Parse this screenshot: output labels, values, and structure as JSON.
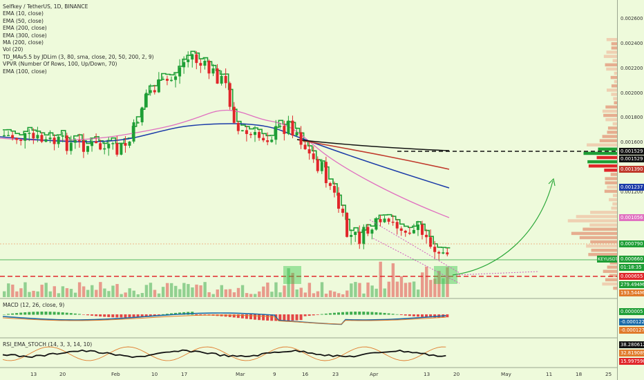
{
  "chart": {
    "indicators": [
      "Selfkey / TetherUS, 1D, BINANCE",
      "EMA (10, close)",
      "EMA (50, close)",
      "EMA (200, close)",
      "EMA (300, close)",
      "MA (200, close)",
      "Vol (20)",
      "TD_MAv5.5 by JDLim (3, 80, sma, close, 20, 50, 200, 2, 9)",
      "VPVR (Number Of Rows, 100, Up/Down, 70)",
      "EMA (100, close)"
    ],
    "macd_label": "MACD (12, 26, close, 9)",
    "rsi_label": "RSI_EMA_STOCH (14, 3, 3, 14, 10)",
    "symbol_tag": "KEYUSDT",
    "colors": {
      "background": "#eefadb",
      "up": "#1e9e35",
      "down": "#e0262a",
      "ema_black": "#111111",
      "ema_blue": "#1a3aa8",
      "ema_red": "#c0392b",
      "ma_pink": "#e070c0",
      "projection": "#2ca83a"
    }
  },
  "price_axis": {
    "ticks": [
      "0.002600",
      "0.002400",
      "0.002200",
      "0.002000",
      "0.001800",
      "0.001600",
      "0.001200"
    ],
    "tags": [
      {
        "text": "0.001529",
        "bg": "#111111"
      },
      {
        "text": "0.001529",
        "bg": "#111111"
      },
      {
        "text": "0.001390",
        "bg": "#c0392b"
      },
      {
        "text": "0.001237",
        "bg": "#1a3aa8"
      },
      {
        "text": "0.001056",
        "bg": "#e070c0"
      },
      {
        "text": "0.000790",
        "bg": "#1e9e35"
      },
      {
        "text": "0.000660",
        "bg": "#1e9e35"
      },
      {
        "text": "01:18:35",
        "bg": "#1e9e35"
      },
      {
        "text": "0.000655",
        "bg": "#e0262a"
      },
      {
        "text": "279.494M",
        "bg": "#1e9e35"
      },
      {
        "text": "193.544M",
        "bg": "#e07a2a"
      }
    ]
  },
  "macd_axis": [
    {
      "text": "0.000005",
      "bg": "#1e9e35"
    },
    {
      "text": "-0.000122",
      "bg": "#1a6aa8"
    },
    {
      "text": "-0.000127",
      "bg": "#e07a2a"
    }
  ],
  "rsi_axis": [
    {
      "text": "38.280612",
      "bg": "#111111"
    },
    {
      "text": "32.819089",
      "bg": "#e07a2a"
    },
    {
      "text": "15.997590",
      "bg": "#e0262a"
    }
  ],
  "time_axis": [
    "13",
    "20",
    "Feb",
    "10",
    "17",
    "Mar",
    "9",
    "16",
    "23",
    "Apr",
    "13",
    "20",
    "May",
    "11",
    "18",
    "25"
  ]
}
